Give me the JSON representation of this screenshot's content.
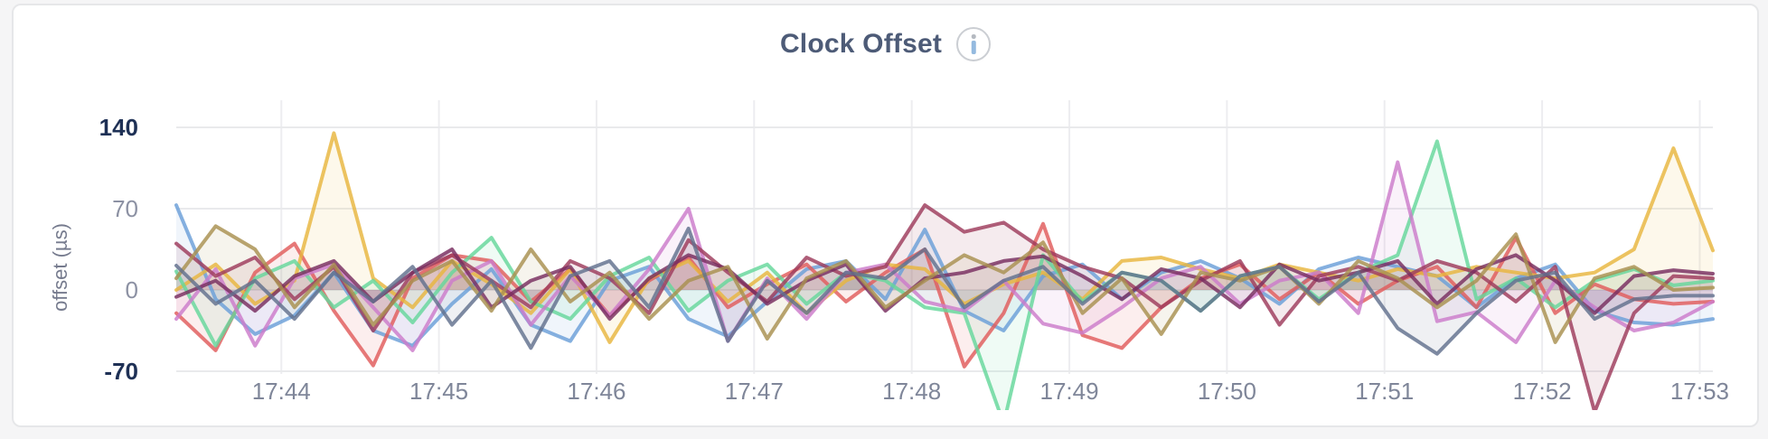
{
  "window": {
    "background": "#f5f5f6"
  },
  "card": {
    "background": "#ffffff",
    "border_color": "#e6e7e9"
  },
  "header": {
    "title": "Clock Offset",
    "info_icon": {
      "circle_color": "#cbced3",
      "dot_color": "#b4b9c0",
      "stem_color": "#94badf"
    }
  },
  "chart_data": {
    "type": "line",
    "title": "Clock Offset",
    "xlabel": "",
    "ylabel": "offset (µs)",
    "grid": true,
    "legend_position": "none",
    "y_ticks": [
      140,
      70,
      0,
      -70
    ],
    "ylim": [
      -100,
      165
    ],
    "x_tick_labels": [
      "17:44",
      "17:45",
      "17:46",
      "17:47",
      "17:48",
      "17:49",
      "17:50",
      "17:51",
      "17:52",
      "17:53"
    ],
    "x_tick_seconds": [
      40,
      100,
      160,
      220,
      280,
      340,
      400,
      460,
      520,
      580
    ],
    "x_total_seconds": 585,
    "sample_interval_seconds": 15,
    "axis_styles": {
      "tick_label_color": "#7f8699",
      "y_extreme_label_color": "#1e3055",
      "y_inner_label_color": "#8c91a3",
      "h_grid_color": "#e9eaec",
      "v_grid_color": "#ededf0",
      "line_width": 4,
      "line_opacity": 0.82,
      "fill_opacity": 0.1
    },
    "series": [
      {
        "name": "blue",
        "color": "#6A9FD8",
        "values": [
          73,
          -8,
          -38,
          -22,
          15,
          -35,
          -48,
          -12,
          18,
          -30,
          -44,
          8,
          20,
          -25,
          -40,
          -10,
          18,
          25,
          -8,
          52,
          -18,
          -35,
          12,
          22,
          -8,
          15,
          25,
          10,
          -12,
          18,
          28,
          20,
          12,
          -15,
          10,
          22,
          -18,
          -28,
          -30,
          -25
        ]
      },
      {
        "name": "coral",
        "color": "#E05C5C",
        "values": [
          -20,
          -52,
          15,
          40,
          -18,
          -65,
          10,
          30,
          25,
          -10,
          18,
          -22,
          8,
          28,
          -15,
          5,
          22,
          -10,
          15,
          35,
          -66,
          -20,
          57,
          -39,
          -50,
          -15,
          10,
          22,
          -8,
          15,
          -12,
          8,
          20,
          -15,
          45,
          -20,
          5,
          -8,
          -12,
          -10
        ]
      },
      {
        "name": "gold",
        "color": "#E8B63E",
        "values": [
          0,
          22,
          -12,
          8,
          135,
          10,
          -15,
          25,
          5,
          -20,
          18,
          -45,
          10,
          25,
          -10,
          15,
          -20,
          8,
          22,
          18,
          -12,
          5,
          15,
          -8,
          25,
          28,
          18,
          10,
          22,
          15,
          8,
          18,
          12,
          20,
          15,
          10,
          15,
          35,
          122,
          34
        ]
      },
      {
        "name": "green",
        "color": "#65D79B",
        "values": [
          16,
          -48,
          10,
          25,
          -15,
          8,
          -28,
          15,
          45,
          -10,
          -25,
          12,
          28,
          -18,
          8,
          22,
          -12,
          15,
          8,
          -15,
          -20,
          -115,
          30,
          -10,
          15,
          8,
          -18,
          12,
          20,
          -8,
          15,
          30,
          128,
          -8,
          10,
          -15,
          8,
          18,
          4,
          8
        ]
      },
      {
        "name": "orchid",
        "color": "#CC7BCB",
        "values": [
          -25,
          18,
          -48,
          10,
          22,
          -15,
          -52,
          8,
          25,
          -30,
          12,
          -22,
          18,
          70,
          -44,
          10,
          -25,
          15,
          22,
          -10,
          -18,
          8,
          -29,
          -37,
          -15,
          10,
          20,
          -12,
          8,
          15,
          -20,
          110,
          -27,
          -19,
          -45,
          8,
          -15,
          -35,
          -28,
          -10
        ]
      },
      {
        "name": "maroon",
        "color": "#9E3A5B",
        "values": [
          40,
          12,
          28,
          -8,
          20,
          -35,
          15,
          30,
          8,
          -15,
          25,
          10,
          -20,
          43,
          15,
          -10,
          28,
          12,
          20,
          73,
          50,
          58,
          35,
          20,
          10,
          -15,
          8,
          25,
          -30,
          12,
          20,
          8,
          25,
          15,
          -10,
          20,
          -105,
          -20,
          12,
          10
        ]
      },
      {
        "name": "plum",
        "color": "#772D5F",
        "values": [
          -6,
          8,
          -18,
          12,
          25,
          -10,
          15,
          35,
          -15,
          8,
          20,
          -25,
          10,
          30,
          18,
          -12,
          8,
          22,
          -18,
          10,
          15,
          25,
          29,
          12,
          -8,
          18,
          10,
          -15,
          22,
          8,
          15,
          25,
          -12,
          18,
          30,
          8,
          -20,
          12,
          17,
          14
        ]
      },
      {
        "name": "olive",
        "color": "#A8904F",
        "values": [
          10,
          55,
          35,
          -15,
          22,
          -30,
          8,
          25,
          -18,
          35,
          -10,
          15,
          -25,
          8,
          20,
          -42,
          10,
          25,
          -15,
          8,
          30,
          15,
          41,
          -20,
          10,
          -38,
          15,
          8,
          20,
          -12,
          25,
          10,
          -15,
          8,
          48,
          -45,
          10,
          20,
          0,
          2
        ]
      },
      {
        "name": "slate",
        "color": "#61708D",
        "values": [
          21,
          -12,
          8,
          -25,
          15,
          -10,
          20,
          -30,
          8,
          -50,
          12,
          25,
          -15,
          53,
          -44,
          8,
          -20,
          15,
          10,
          35,
          -15,
          8,
          20,
          -12,
          15,
          8,
          -18,
          12,
          20,
          -10,
          15,
          -33,
          -55,
          -20,
          8,
          15,
          -25,
          -8,
          -5,
          -5
        ]
      }
    ]
  }
}
